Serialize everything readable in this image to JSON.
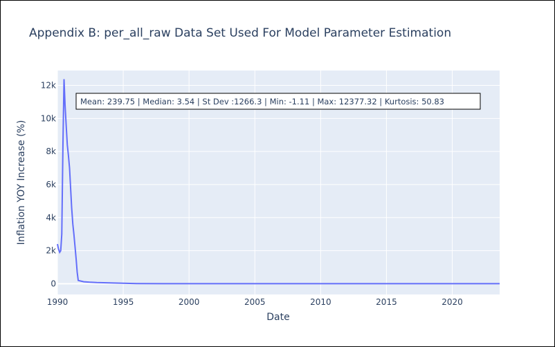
{
  "chart_data": {
    "type": "line",
    "title": "Appendix B: per_all_raw Data Set Used For Model Parameter Estimation",
    "xlabel": "Date",
    "ylabel": "Inflation YOY Increase (%)",
    "xlim": [
      1990.0,
      2023.6
    ],
    "ylim": [
      -650,
      12900
    ],
    "x_ticks": [
      1990,
      1995,
      2000,
      2005,
      2010,
      2015,
      2020
    ],
    "x_tick_labels": [
      "1990",
      "1995",
      "2000",
      "2005",
      "2010",
      "2015",
      "2020"
    ],
    "y_ticks": [
      0,
      2000,
      4000,
      6000,
      8000,
      10000,
      12000
    ],
    "y_tick_labels": [
      "0",
      "2k",
      "4k",
      "6k",
      "8k",
      "10k",
      "12k"
    ],
    "grid": true,
    "annotation": "Mean: 239.75 | Median: 3.54 | St Dev :1266.3 | Min: -1.11 | Max: 12377.32 | Kurtosis: 50.83",
    "series": [
      {
        "color": "#636efa",
        "x": [
          1990.0,
          1990.08,
          1990.17,
          1990.25,
          1990.33,
          1990.42,
          1990.5,
          1990.58,
          1990.67,
          1990.75,
          1990.83,
          1990.92,
          1991.0,
          1991.08,
          1991.17,
          1991.25,
          1991.33,
          1991.42,
          1991.5,
          1991.58,
          1991.67,
          1992.0,
          1992.5,
          1993.0,
          1994.0,
          1995.0,
          1996.0,
          1998.0,
          2000.0,
          2003.0,
          2005.0,
          2008.0,
          2010.0,
          2015.0,
          2020.0,
          2023.6
        ],
        "y": [
          2400,
          2100,
          1900,
          2000,
          3000,
          8500,
          12377,
          10800,
          9500,
          8400,
          7800,
          7000,
          5800,
          4600,
          3600,
          3000,
          2300,
          1500,
          700,
          200,
          180,
          120,
          90,
          70,
          50,
          30,
          10,
          5,
          3,
          2,
          2,
          3,
          2,
          2,
          3,
          4
        ]
      }
    ]
  }
}
